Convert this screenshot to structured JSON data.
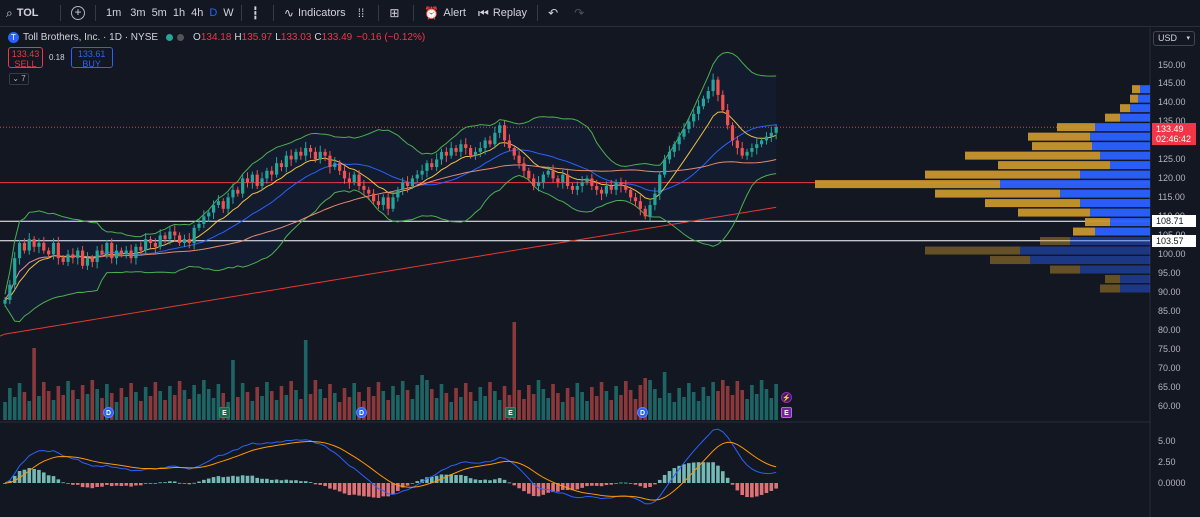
{
  "toolbar": {
    "symbol": "TOL",
    "intervals": [
      "1m",
      "3m",
      "5m",
      "1h",
      "4h",
      "D",
      "W"
    ],
    "active_interval": "D",
    "indicators_label": "Indicators",
    "alert_label": "Alert",
    "replay_label": "Replay"
  },
  "legend": {
    "name": "Toll Brothers, Inc. · 1D · NYSE",
    "o_label": "O",
    "o": "134.18",
    "h_label": "H",
    "h": "135.97",
    "l_label": "L",
    "l": "133.03",
    "c_label": "C",
    "c": "133.49",
    "change": "−0.16 (−0.12%)",
    "sell_price": "133.43",
    "sell_label": "SELL",
    "spread": "0.18",
    "buy_price": "133.61",
    "buy_label": "BUY",
    "collapse_count": "7"
  },
  "currency": "USD",
  "price_axis": {
    "labels": [
      "150.00",
      "145.00",
      "140.00",
      "135.00",
      "130.00",
      "125.00",
      "120.00",
      "115.00",
      "110.00",
      "105.00",
      "100.00",
      "95.00",
      "90.00",
      "85.00",
      "80.00",
      "75.00",
      "70.00",
      "65.00",
      "60.00"
    ],
    "last_price": "133.49",
    "countdown": "02:46:42",
    "line_1": "108.71",
    "line_2": "103.57"
  },
  "macd_axis": {
    "labels": [
      "5.00",
      "2.50",
      "0.0000"
    ]
  },
  "events": {
    "dividend": "D",
    "earnings": "E",
    "flash": "⚡"
  },
  "colors": {
    "up": "#26a69a",
    "down": "#ef5350",
    "vp_up": "#2962ff",
    "vp_down": "#c9962e"
  },
  "chart_data": {
    "type": "candlestick",
    "symbol": "TOL",
    "interval": "1D",
    "ylim": [
      58,
      152
    ],
    "close": [
      88,
      92,
      99,
      103,
      101,
      104,
      102,
      103,
      101,
      100,
      103,
      99,
      98,
      100,
      99,
      101,
      97,
      99,
      98,
      101,
      100,
      103,
      99,
      101,
      100,
      101,
      99,
      102,
      101,
      104,
      103,
      102,
      105,
      104,
      106,
      105,
      103,
      104,
      103,
      107,
      108,
      110,
      111,
      113,
      114,
      112,
      115,
      117,
      116,
      120,
      119,
      121,
      118,
      120,
      122,
      121,
      124,
      123,
      126,
      125,
      127,
      126,
      128,
      127,
      125,
      127,
      126,
      123,
      124,
      122,
      120,
      119,
      121,
      118,
      117,
      116,
      114,
      113,
      115,
      112,
      115,
      117,
      119,
      118,
      120,
      121,
      122,
      124,
      123,
      125,
      127,
      126,
      128,
      127,
      129,
      128,
      126,
      127,
      128,
      130,
      129,
      132,
      134,
      130,
      128,
      126,
      124,
      122,
      120,
      118,
      119,
      121,
      122,
      120,
      119,
      121,
      118,
      117,
      118,
      119,
      120,
      118,
      117,
      116,
      118,
      117,
      119,
      118,
      117,
      115,
      114,
      112,
      110,
      113,
      116,
      121,
      125,
      127,
      129,
      131,
      133,
      135,
      137,
      139,
      141,
      143,
      146,
      142,
      138,
      134,
      130,
      128,
      126,
      127,
      128,
      129,
      130,
      131,
      132,
      133.49
    ]
  }
}
